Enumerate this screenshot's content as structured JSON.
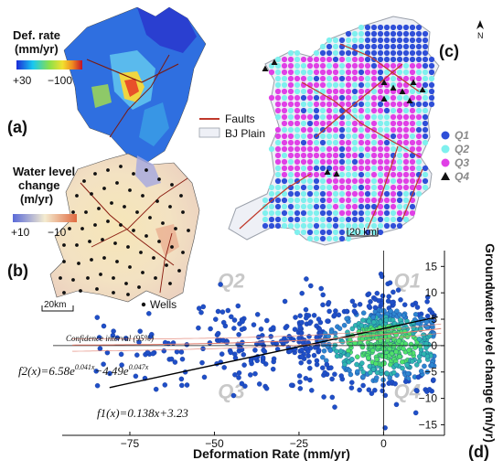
{
  "colors": {
    "fault": "#c0392b",
    "q1": "#2f4fd8",
    "q2": "#7ff0ee",
    "q3": "#e040e6",
    "q4": "#111111",
    "plain_fill": "#eef0f6",
    "plain_stroke": "#9aa0aa",
    "quadrant_text": "#c8c8c8",
    "fit_line": "#000000",
    "ci_line": "#e07a6a"
  },
  "panel_a": {
    "label": "(a)",
    "legend_title": "Def. rate\n(mm/yr)",
    "legend_min": "+30",
    "legend_max": "−100"
  },
  "panel_b": {
    "label": "(b)",
    "legend_title": "Water level\nchange\n(m/yr)",
    "legend_min": "+10",
    "legend_max": "−10",
    "wells_label": "Wells",
    "scale_label": "20km"
  },
  "center_legend": {
    "faults_label": "Faults",
    "plain_label": "BJ Plain"
  },
  "panel_c": {
    "label": "(c)",
    "north_label": "N",
    "scale_label": "20 km",
    "legend": [
      {
        "name": "Q1",
        "symbol": "circle",
        "color": "#2f4fd8"
      },
      {
        "name": "Q2",
        "symbol": "circle",
        "color": "#7ff0ee"
      },
      {
        "name": "Q3",
        "symbol": "circle",
        "color": "#e040e6"
      },
      {
        "name": "Q4",
        "symbol": "triangle",
        "color": "#111111"
      }
    ]
  },
  "panel_d": {
    "label": "(d)",
    "quadrant_labels": [
      "Q1",
      "Q2",
      "Q3",
      "Q4"
    ],
    "ci_label": "Confidence interval (95%)",
    "f1_label": "f1(x)=0.138x+3.23",
    "f2_label": "f2(x)=6.58e",
    "f2_exp1": "0.041x",
    "f2_mid": "−4.49e",
    "f2_exp2": "0.047x"
  },
  "chart_data": {
    "type": "scatter",
    "xlabel": "Deformation Rate (mm/yr)",
    "ylabel": "Groundwater level change (m/yr)",
    "xlim": [
      -95,
      18
    ],
    "ylim": [
      -17,
      18
    ],
    "x_ticks": [
      -75,
      -50,
      -25,
      0
    ],
    "x_tick_labels": [
      "−75",
      "−50",
      "−25",
      "0"
    ],
    "y_ticks": [
      -15,
      -10,
      -5,
      0,
      5,
      10,
      15
    ],
    "y_tick_labels": [
      "−15",
      "−10",
      "−5",
      "0",
      "5",
      "10",
      "15"
    ],
    "fit_linear": {
      "slope": 0.138,
      "intercept": 3.23,
      "x_range": [
        -81,
        16
      ]
    },
    "fit_exponential": {
      "a": 6.58,
      "b": 0.041,
      "c": -4.49,
      "d": 0.047
    },
    "point_clusters": [
      {
        "x_range": [
          -85,
          -55
        ],
        "y_center": -1,
        "y_spread": 7,
        "count": 45
      },
      {
        "x_range": [
          -55,
          -25
        ],
        "y_center": 0,
        "y_spread": 8,
        "count": 120
      },
      {
        "x_range": [
          -25,
          -5
        ],
        "y_center": 0.5,
        "y_spread": 9,
        "count": 210
      },
      {
        "x_range": [
          -5,
          3
        ],
        "y_center": 1,
        "y_spread": 10,
        "count": 260
      },
      {
        "x_range": [
          3,
          15
        ],
        "y_center": 0,
        "y_spread": 10,
        "count": 200
      }
    ]
  }
}
